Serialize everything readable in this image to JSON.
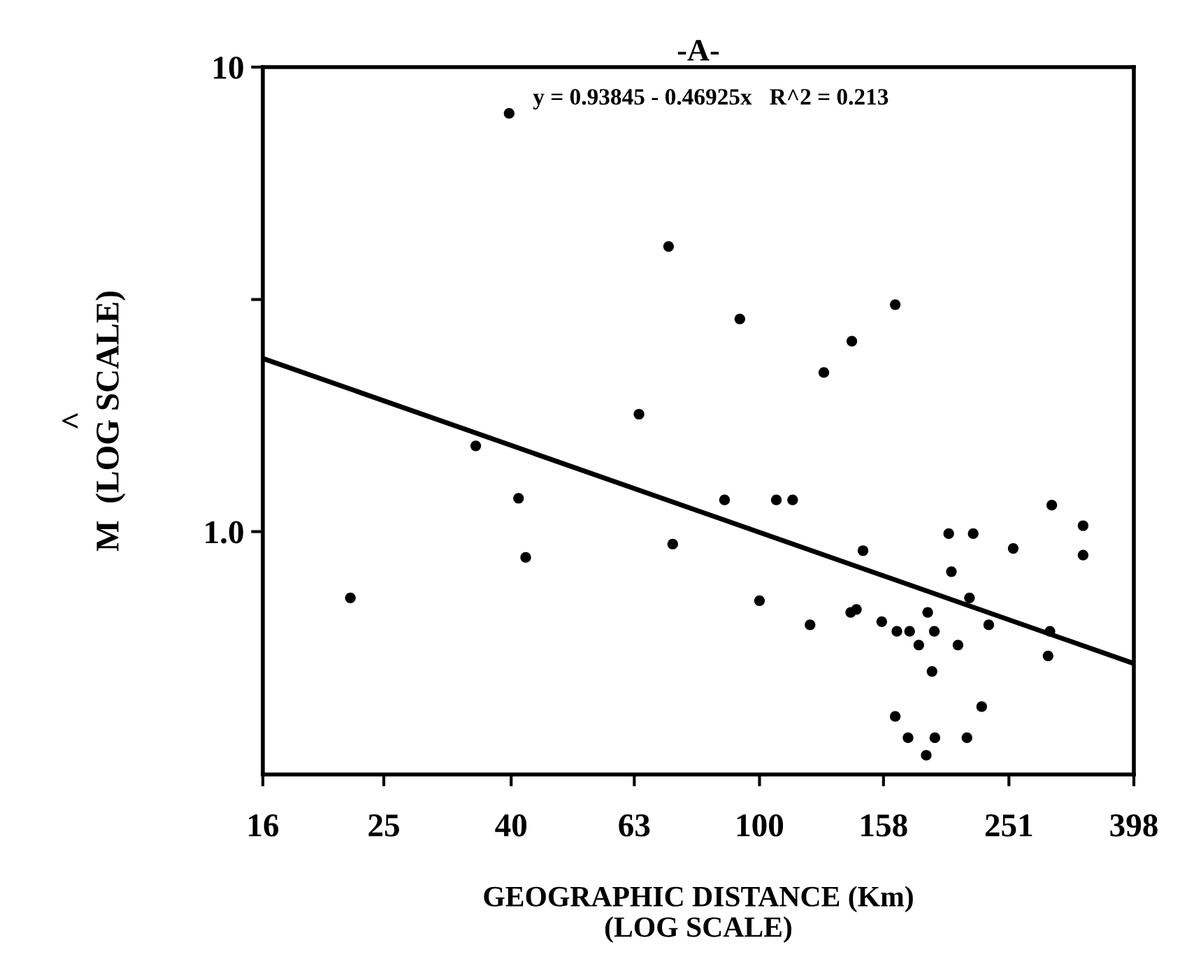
{
  "chart_data": {
    "type": "scatter",
    "title": "-A-",
    "xlabel": "GEOGRAPHIC DISTANCE (Km)\n(LOG SCALE)",
    "ylabel": "^\nM  (LOG SCALE)",
    "annotations": [
      "y = 0.93845 - 0.46925x   R^2 = 0.213"
    ],
    "log": "xy",
    "xlim": [
      16,
      398
    ],
    "xticks": [
      16,
      25,
      40,
      63,
      100,
      158,
      251,
      398
    ],
    "ylim": [
      0.3,
      10
    ],
    "yticks": [
      {
        "value": 10,
        "label": "10"
      },
      {
        "value": 3.16,
        "label": null
      },
      {
        "value": 1,
        "label": "1.0"
      }
    ],
    "grid": false,
    "legend": false,
    "series": [
      {
        "color": "#000000",
        "marker": "circle",
        "x": [
          39.7,
          71.5,
          93,
          140.6,
          126.8,
          64.1,
          35.1,
          165,
          41.1,
          87.9,
          106.4,
          113,
          146.5,
          72.6,
          42.2,
          22.1,
          100,
          120.5,
          140,
          143,
          294,
          330,
          330,
          201,
          220,
          255,
          203,
          217,
          157,
          166,
          174,
          186,
          190.6,
          180,
          208,
          233,
          292,
          290,
          189,
          165,
          173,
          191,
          215,
          227,
          185
        ],
        "values": [
          7.95,
          4.11,
          2.87,
          2.57,
          2.2,
          1.79,
          1.53,
          3.08,
          1.18,
          1.17,
          1.17,
          1.17,
          0.91,
          0.94,
          0.88,
          0.72,
          0.71,
          0.63,
          0.67,
          0.68,
          1.14,
          1.03,
          0.89,
          0.99,
          0.99,
          0.92,
          0.82,
          0.72,
          0.64,
          0.61,
          0.61,
          0.67,
          0.61,
          0.57,
          0.57,
          0.63,
          0.61,
          0.54,
          0.5,
          0.4,
          0.36,
          0.36,
          0.36,
          0.42,
          0.33
        ]
      },
      {
        "type": "line",
        "color": "#000000",
        "line_style": "solid",
        "marker": "none",
        "x": [
          16,
          398
        ],
        "values": [
          2.36,
          0.52
        ]
      }
    ]
  }
}
